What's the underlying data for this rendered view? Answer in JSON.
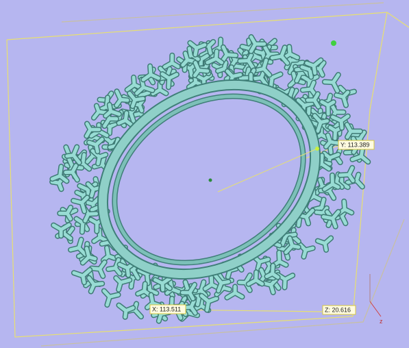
{
  "labels": {
    "y": "Y: 113.389",
    "x": "X: 113.511",
    "z": "Z: 20.616"
  },
  "axis": "z"
}
